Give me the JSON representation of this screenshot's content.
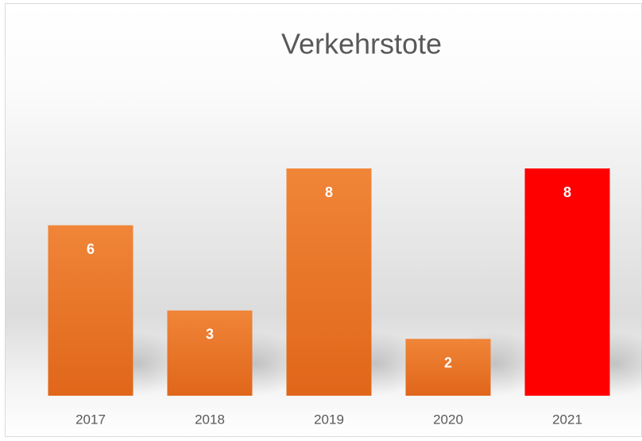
{
  "chart_data": {
    "type": "bar",
    "title": "Verkehrstote",
    "categories": [
      "2017",
      "2018",
      "2019",
      "2020",
      "2021"
    ],
    "values": [
      6,
      3,
      8,
      2,
      8
    ],
    "colors": [
      "#ed7d31",
      "#ed7d31",
      "#ed7d31",
      "#ed7d31",
      "#ff0000"
    ],
    "ylim": [
      0,
      10
    ]
  }
}
